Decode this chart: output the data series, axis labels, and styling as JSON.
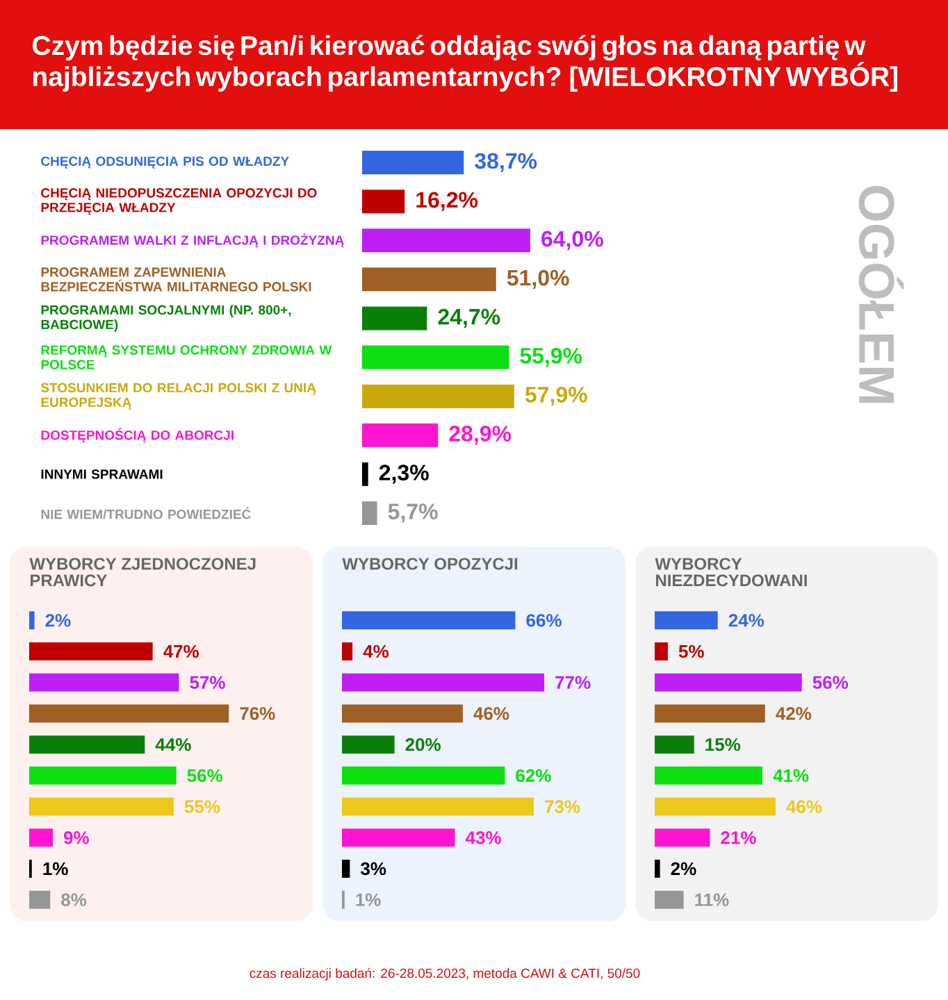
{
  "chart_data": [
    {
      "type": "bar",
      "orientation": "horizontal",
      "title": "Czym będzie się Pan/i kierować oddając swój głos na daną partię w najbliższych wyborach parlamentarnych? [WIELOKROTNY WYBÓR]",
      "y2label": "OGÓŁEM",
      "categories": [
        "CHĘCIĄ ODSUNIĘCIA PIS OD WŁADZY",
        "CHĘCIĄ NIEDOPUSZCZENIA OPOZYCJI DO PRZEJĘCIA WŁADZY",
        "PROGRAMEM WALKI Z INFLACJĄ I DROŻYZNĄ",
        "PROGRAMEM ZAPEWNIENIA BEZPIECZEŃSTWA MILITARNEGO POLSKI",
        "PROGRAMAMI SOCJALNYMI (NP. 800+, BABCIOWE)",
        "REFORMĄ SYSTEMU OCHRONY ZDROWIA W POLSCE",
        "STOSUNKIEM DO RELACJI POLSKI Z UNIĄ EUROPEJSKĄ",
        "DOSTĘPNOŚCIĄ DO ABORCJI",
        "INNYMI SPRAWAMI",
        "NIE WIEM/TRUDNO POWIEDZIEĆ"
      ],
      "values": [
        38.7,
        16.2,
        64.0,
        51.0,
        24.7,
        55.9,
        57.9,
        28.9,
        2.3,
        5.7
      ],
      "colors": [
        "#3366e0",
        "#c00000",
        "#bf1ff5",
        "#a05f25",
        "#0a800a",
        "#0ae010",
        "#c9a90a",
        "#ff14d2",
        "#000000",
        "#969696"
      ],
      "value_labels": [
        "38,7%",
        "16,2%",
        "64,0%",
        "51,0%",
        "24,7%",
        "55,9%",
        "57,9%",
        "28,9%",
        "2,3%",
        "5,7%"
      ],
      "annotations": [
        "czas realizacji badań: 26-28.05.2023, metoda CAWI & CATI, 50/50"
      ]
    },
    {
      "type": "bar",
      "orientation": "horizontal",
      "title": "WYBORCY ZJEDNOCZONEJ PRAWICY",
      "categories": [
        null,
        null,
        null,
        null,
        null,
        null,
        null,
        null,
        null,
        null
      ],
      "values": [
        2,
        47,
        57,
        76,
        44,
        56,
        55,
        9,
        1,
        8
      ],
      "colors": [
        "#3366e0",
        "#c00000",
        "#bf1ff5",
        "#a05f25",
        "#0a800a",
        "#0ae010",
        "#ebc81a",
        "#ff14d2",
        "#000000",
        "#969696"
      ],
      "value_labels": [
        "2%",
        "47%",
        "57%",
        "76%",
        "44%",
        "56%",
        "55%",
        "9%",
        "1%",
        "8%"
      ]
    },
    {
      "type": "bar",
      "orientation": "horizontal",
      "title": "WYBORCY OPOZYCJI",
      "categories": [
        null,
        null,
        null,
        null,
        null,
        null,
        null,
        null,
        null,
        null
      ],
      "values": [
        66,
        4,
        77,
        46,
        20,
        62,
        73,
        43,
        3,
        1
      ],
      "colors": [
        "#3366e0",
        "#c00000",
        "#bf1ff5",
        "#a05f25",
        "#0a800a",
        "#0ae010",
        "#ebc81a",
        "#ff14d2",
        "#000000",
        "#969696"
      ],
      "value_labels": [
        "66%",
        "4%",
        "77%",
        "46%",
        "20%",
        "62%",
        "73%",
        "43%",
        "3%",
        "1%"
      ]
    },
    {
      "type": "bar",
      "orientation": "horizontal",
      "title": "WYBORCY NIEZDECYDOWANI",
      "categories": [
        null,
        null,
        null,
        null,
        null,
        null,
        null,
        null,
        null,
        null
      ],
      "values": [
        24,
        5,
        56,
        42,
        15,
        41,
        46,
        21,
        2,
        11
      ],
      "colors": [
        "#3366e0",
        "#c00000",
        "#bf1ff5",
        "#a05f25",
        "#0a800a",
        "#0ae010",
        "#ebc81a",
        "#ff14d2",
        "#000000",
        "#969696"
      ],
      "value_labels": [
        "24%",
        "5%",
        "56%",
        "42%",
        "15%",
        "41%",
        "46%",
        "21%",
        "2%",
        "11%"
      ]
    }
  ]
}
